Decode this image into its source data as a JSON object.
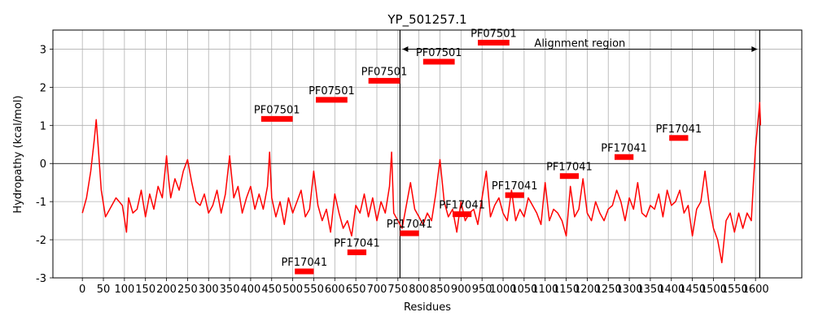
{
  "chart_data": {
    "type": "line",
    "title": "YP_501257.1",
    "xlabel": "Residues",
    "ylabel": "Hydropathy (kcal/mol)",
    "xlim": [
      -70,
      1710
    ],
    "ylim": [
      -3,
      3.5
    ],
    "x_ticks": [
      0,
      50,
      100,
      150,
      200,
      250,
      300,
      350,
      400,
      450,
      500,
      550,
      600,
      650,
      700,
      750,
      800,
      850,
      900,
      950,
      1000,
      1050,
      1100,
      1150,
      1200,
      1250,
      1300,
      1350,
      1400,
      1450,
      1500,
      1550,
      1600
    ],
    "y_ticks": [
      -3,
      -2,
      -1,
      0,
      1,
      2,
      3
    ],
    "grid": true,
    "line_color": "#ff0000",
    "domain_color": "#ff0000",
    "series": [
      {
        "x": [
          0,
          10,
          20,
          28,
          33,
          38,
          45,
          55,
          65,
          80,
          95,
          105,
          110,
          120,
          130,
          140,
          150,
          160,
          170,
          180,
          190,
          200,
          205,
          210,
          220,
          230,
          240,
          250,
          260,
          270,
          280,
          290,
          300,
          310,
          320,
          330,
          340,
          350,
          360,
          370,
          380,
          390,
          400,
          410,
          420,
          430,
          440,
          445,
          450,
          460,
          470,
          480,
          490,
          500,
          510,
          520,
          530,
          540,
          550,
          560,
          570,
          580,
          590,
          600,
          610,
          620,
          630,
          640,
          650,
          660,
          670,
          680,
          690,
          700,
          710,
          720,
          730,
          735,
          740,
          750,
          760,
          770,
          780,
          790,
          800,
          810,
          820,
          830,
          840,
          850,
          860,
          870,
          880,
          890,
          900,
          910,
          920,
          930,
          940,
          950,
          960,
          970,
          980,
          990,
          1000,
          1010,
          1020,
          1030,
          1040,
          1050,
          1060,
          1070,
          1080,
          1090,
          1100,
          1110,
          1120,
          1130,
          1140,
          1150,
          1160,
          1170,
          1180,
          1190,
          1200,
          1210,
          1220,
          1230,
          1240,
          1250,
          1260,
          1270,
          1280,
          1290,
          1300,
          1310,
          1320,
          1330,
          1340,
          1350,
          1360,
          1370,
          1380,
          1390,
          1400,
          1410,
          1420,
          1430,
          1440,
          1450,
          1460,
          1470,
          1480,
          1490,
          1500,
          1510,
          1520,
          1530,
          1540,
          1550,
          1560,
          1570,
          1580,
          1590,
          1595,
          1600,
          1605,
          1610,
          1612
        ],
        "y": [
          -1.3,
          -0.9,
          -0.2,
          0.6,
          1.15,
          0.4,
          -0.7,
          -1.4,
          -1.2,
          -0.9,
          -1.1,
          -1.8,
          -0.9,
          -1.3,
          -1.2,
          -0.7,
          -1.4,
          -0.8,
          -1.2,
          -0.6,
          -0.9,
          0.2,
          -0.4,
          -0.9,
          -0.4,
          -0.7,
          -0.2,
          0.1,
          -0.5,
          -1.0,
          -1.1,
          -0.8,
          -1.3,
          -1.1,
          -0.7,
          -1.3,
          -0.8,
          0.2,
          -0.9,
          -0.6,
          -1.3,
          -0.9,
          -0.6,
          -1.2,
          -0.8,
          -1.2,
          -0.6,
          0.3,
          -0.9,
          -1.4,
          -1.0,
          -1.6,
          -0.9,
          -1.3,
          -1.0,
          -0.7,
          -1.4,
          -1.2,
          -0.2,
          -1.1,
          -1.5,
          -1.2,
          -1.8,
          -0.8,
          -1.3,
          -1.7,
          -1.5,
          -1.9,
          -1.1,
          -1.3,
          -0.8,
          -1.4,
          -0.9,
          -1.5,
          -1.0,
          -1.3,
          -0.6,
          0.3,
          -1.3,
          -1.5,
          -1.7,
          -1.1,
          -0.5,
          -1.2,
          -1.4,
          -1.6,
          -1.3,
          -1.5,
          -0.8,
          0.1,
          -1.0,
          -1.4,
          -1.2,
          -1.8,
          -1.0,
          -1.5,
          -1.3,
          -1.2,
          -1.6,
          -0.9,
          -0.2,
          -1.4,
          -1.1,
          -0.9,
          -1.3,
          -1.5,
          -0.7,
          -1.5,
          -1.2,
          -1.4,
          -0.9,
          -1.1,
          -1.3,
          -1.6,
          -0.5,
          -1.5,
          -1.2,
          -1.3,
          -1.5,
          -1.9,
          -0.6,
          -1.4,
          -1.2,
          -0.4,
          -1.3,
          -1.5,
          -1.0,
          -1.3,
          -1.5,
          -1.2,
          -1.1,
          -0.7,
          -1.0,
          -1.5,
          -0.9,
          -1.2,
          -0.5,
          -1.3,
          -1.4,
          -1.1,
          -1.2,
          -0.8,
          -1.4,
          -0.7,
          -1.1,
          -1.0,
          -0.7,
          -1.3,
          -1.1,
          -1.9,
          -1.2,
          -1.0,
          -0.2,
          -1.1,
          -1.7,
          -2.0,
          -2.6,
          -1.5,
          -1.3,
          -1.8,
          -1.3,
          -1.7,
          -1.3,
          -1.5,
          -0.5,
          0.4,
          1.0,
          1.6,
          1.0
        ]
      }
    ],
    "vlines": [
      {
        "x": 755,
        "color": "#000000"
      },
      {
        "x": 1610,
        "color": "#000000"
      }
    ],
    "hline": {
      "y": 0,
      "color": "#000000"
    },
    "alignment_arrow": {
      "x_start": 755,
      "x_end": 1610,
      "y": 3.0,
      "label": "Alignment region"
    },
    "domains": [
      {
        "name": "PF07501",
        "start": 425,
        "end": 500,
        "y": 1.17
      },
      {
        "name": "PF07501",
        "start": 555,
        "end": 630,
        "y": 1.67
      },
      {
        "name": "PF07501",
        "start": 680,
        "end": 755,
        "y": 2.17
      },
      {
        "name": "PF07501",
        "start": 810,
        "end": 885,
        "y": 2.67
      },
      {
        "name": "PF07501",
        "start": 940,
        "end": 1015,
        "y": 3.17
      },
      {
        "name": "PF17041",
        "start": 505,
        "end": 550,
        "y": -2.83
      },
      {
        "name": "PF17041",
        "start": 630,
        "end": 675,
        "y": -2.33
      },
      {
        "name": "PF17041",
        "start": 755,
        "end": 800,
        "y": -1.83
      },
      {
        "name": "PF17041",
        "start": 880,
        "end": 925,
        "y": -1.33
      },
      {
        "name": "PF17041",
        "start": 1005,
        "end": 1050,
        "y": -0.83
      },
      {
        "name": "PF17041",
        "start": 1135,
        "end": 1180,
        "y": -0.33
      },
      {
        "name": "PF17041",
        "start": 1265,
        "end": 1310,
        "y": 0.17
      },
      {
        "name": "PF17041",
        "start": 1395,
        "end": 1440,
        "y": 0.67
      }
    ]
  }
}
